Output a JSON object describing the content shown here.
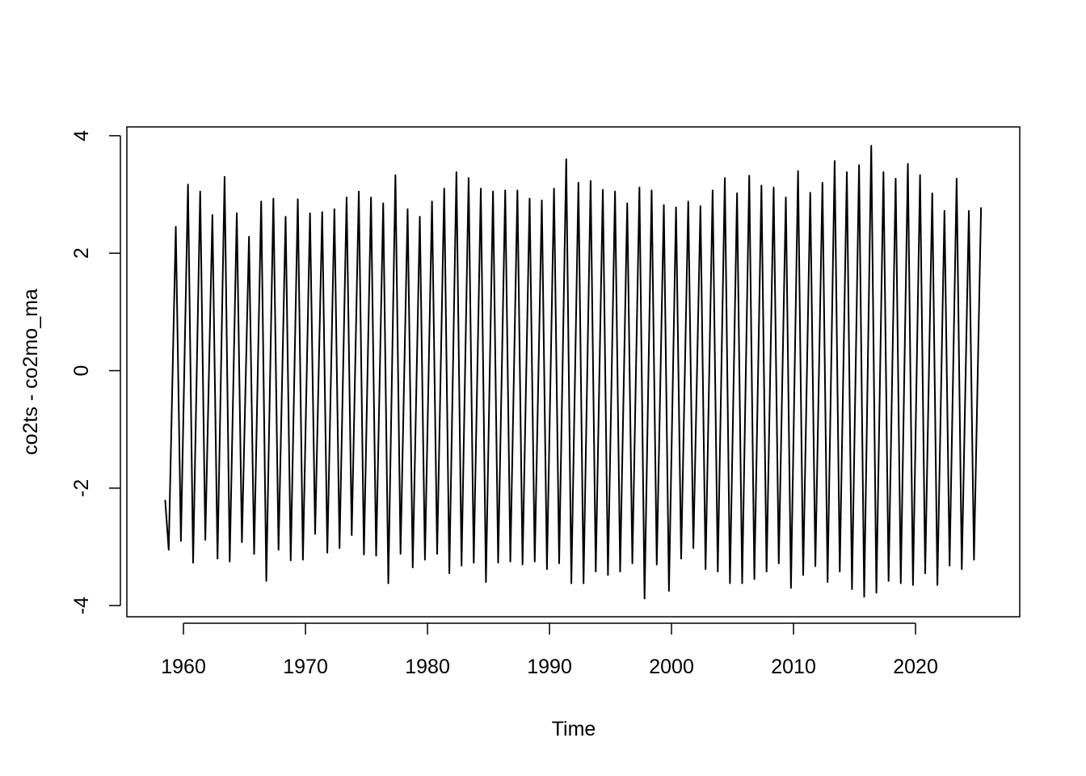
{
  "chart_data": {
    "type": "line",
    "x_label": "Time",
    "y_label": "co2ts - co2mo_ma",
    "x": [
      1958.5,
      1958.79,
      1959.37,
      1959.79,
      1960.37,
      1960.79,
      1961.37,
      1961.79,
      1962.37,
      1962.79,
      1963.37,
      1963.79,
      1964.37,
      1964.79,
      1965.37,
      1965.79,
      1966.37,
      1966.79,
      1967.37,
      1967.79,
      1968.37,
      1968.79,
      1969.37,
      1969.79,
      1970.37,
      1970.79,
      1971.37,
      1971.79,
      1972.37,
      1972.79,
      1973.37,
      1973.79,
      1974.37,
      1974.79,
      1975.37,
      1975.79,
      1976.37,
      1976.79,
      1977.37,
      1977.79,
      1978.37,
      1978.79,
      1979.37,
      1979.79,
      1980.37,
      1980.79,
      1981.37,
      1981.79,
      1982.37,
      1982.79,
      1983.37,
      1983.79,
      1984.37,
      1984.79,
      1985.37,
      1985.79,
      1986.37,
      1986.79,
      1987.37,
      1987.79,
      1988.37,
      1988.79,
      1989.37,
      1989.79,
      1990.37,
      1990.79,
      1991.37,
      1991.79,
      1992.37,
      1992.79,
      1993.37,
      1993.79,
      1994.37,
      1994.79,
      1995.37,
      1995.79,
      1996.37,
      1996.79,
      1997.37,
      1997.79,
      1998.37,
      1998.79,
      1999.37,
      1999.79,
      2000.37,
      2000.79,
      2001.37,
      2001.79,
      2002.37,
      2002.79,
      2003.37,
      2003.79,
      2004.37,
      2004.79,
      2005.37,
      2005.79,
      2006.37,
      2006.79,
      2007.37,
      2007.79,
      2008.37,
      2008.79,
      2009.37,
      2009.79,
      2010.37,
      2010.79,
      2011.37,
      2011.79,
      2012.37,
      2012.79,
      2013.37,
      2013.79,
      2014.37,
      2014.79,
      2015.37,
      2015.79,
      2016.37,
      2016.79,
      2017.37,
      2017.79,
      2018.37,
      2018.79,
      2019.37,
      2019.79,
      2020.37,
      2020.79,
      2021.37,
      2021.79,
      2022.37,
      2022.79,
      2023.37,
      2023.79,
      2024.37,
      2024.79,
      2025.37
    ],
    "values": [
      -2.2,
      -3.05,
      2.45,
      -2.9,
      3.17,
      -3.27,
      3.05,
      -2.88,
      2.65,
      -3.2,
      3.3,
      -3.25,
      2.68,
      -2.92,
      2.28,
      -3.12,
      2.88,
      -3.58,
      2.93,
      -3.05,
      2.62,
      -3.23,
      2.92,
      -3.22,
      2.68,
      -2.78,
      2.7,
      -3.1,
      2.75,
      -3.02,
      2.95,
      -2.8,
      3.05,
      -3.13,
      2.95,
      -3.15,
      2.85,
      -3.62,
      3.33,
      -3.12,
      2.75,
      -3.35,
      2.62,
      -3.22,
      2.88,
      -3.12,
      3.1,
      -3.45,
      3.38,
      -3.32,
      3.28,
      -3.27,
      3.1,
      -3.6,
      3.05,
      -3.27,
      3.07,
      -3.25,
      3.07,
      -3.3,
      2.93,
      -3.25,
      2.9,
      -3.38,
      3.1,
      -3.28,
      3.6,
      -3.62,
      3.2,
      -3.62,
      3.23,
      -3.42,
      3.08,
      -3.48,
      3.05,
      -3.42,
      2.85,
      -3.28,
      3.12,
      -3.88,
      3.07,
      -3.3,
      2.82,
      -3.75,
      2.78,
      -3.2,
      2.88,
      -3.02,
      2.8,
      -3.38,
      3.07,
      -3.42,
      3.28,
      -3.62,
      3.02,
      -3.62,
      3.32,
      -3.55,
      3.15,
      -3.42,
      3.12,
      -3.28,
      2.95,
      -3.7,
      3.4,
      -3.48,
      3.03,
      -3.33,
      3.2,
      -3.6,
      3.57,
      -3.42,
      3.38,
      -3.72,
      3.5,
      -3.85,
      3.83,
      -3.78,
      3.38,
      -3.58,
      3.27,
      -3.62,
      3.52,
      -3.65,
      3.33,
      -3.45,
      3.02,
      -3.65,
      2.72,
      -3.32,
      3.27,
      -3.38,
      2.72,
      -3.22,
      2.78
    ],
    "color": "#000000",
    "xlim": [
      1955.36,
      2028.54
    ],
    "xticks": [
      1960,
      1970,
      1980,
      1990,
      2000,
      2010,
      2020
    ],
    "ylim": [
      -4.19,
      4.15
    ],
    "yticks": [
      -4,
      -2,
      0,
      2,
      4
    ]
  }
}
